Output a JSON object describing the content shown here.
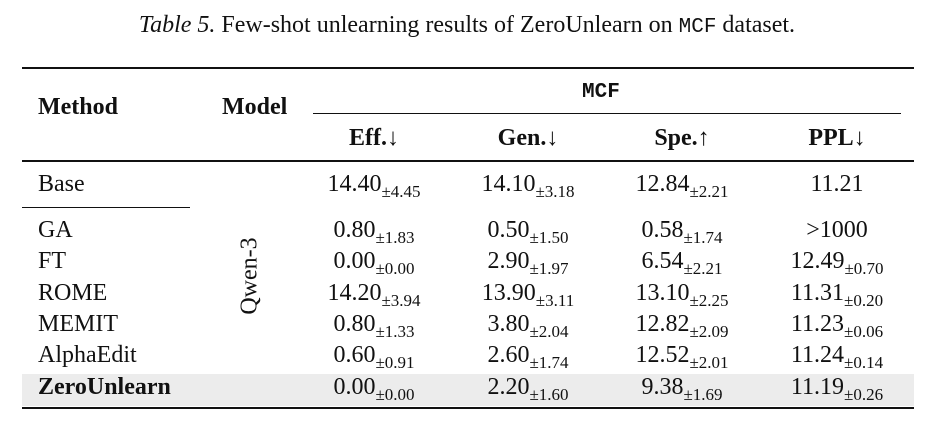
{
  "caption": {
    "label": "Table 5.",
    "text_before": "Few-shot unlearning results of ZeroUnlearn on",
    "dataset": "MCF",
    "text_after": "dataset."
  },
  "headers": {
    "method": "Method",
    "model": "Model",
    "group": "MCF",
    "eff": "Eff.↓",
    "gen": "Gen.↓",
    "spe": "Spe.↑",
    "ppl": "PPL↓"
  },
  "model_name": "Qwen-3",
  "rows": [
    {
      "method": "Base",
      "eff": "14.40",
      "eff_sd": "±4.45",
      "gen": "14.10",
      "gen_sd": "±3.18",
      "spe": "12.84",
      "spe_sd": "±2.21",
      "ppl": "11.21",
      "ppl_sd": ""
    },
    {
      "method": "GA",
      "eff": "0.80",
      "eff_sd": "±1.83",
      "gen": "0.50",
      "gen_sd": "±1.50",
      "spe": "0.58",
      "spe_sd": "±1.74",
      "ppl": ">1000",
      "ppl_sd": ""
    },
    {
      "method": "FT",
      "eff": "0.00",
      "eff_sd": "±0.00",
      "gen": "2.90",
      "gen_sd": "±1.97",
      "spe": "6.54",
      "spe_sd": "±2.21",
      "ppl": "12.49",
      "ppl_sd": "±0.70"
    },
    {
      "method": "ROME",
      "eff": "14.20",
      "eff_sd": "±3.94",
      "gen": "13.90",
      "gen_sd": "±3.11",
      "spe": "13.10",
      "spe_sd": "±2.25",
      "ppl": "11.31",
      "ppl_sd": "±0.20"
    },
    {
      "method": "MEMIT",
      "eff": "0.80",
      "eff_sd": "±1.33",
      "gen": "3.80",
      "gen_sd": "±2.04",
      "spe": "12.82",
      "spe_sd": "±2.09",
      "ppl": "11.23",
      "ppl_sd": "±0.06"
    },
    {
      "method": "AlphaEdit",
      "eff": "0.60",
      "eff_sd": "±0.91",
      "gen": "2.60",
      "gen_sd": "±1.74",
      "spe": "12.52",
      "spe_sd": "±2.01",
      "ppl": "11.24",
      "ppl_sd": "±0.14"
    },
    {
      "method": "ZeroUnlearn",
      "eff": "0.00",
      "eff_sd": "±0.00",
      "gen": "2.20",
      "gen_sd": "±1.60",
      "spe": "9.38",
      "spe_sd": "±1.69",
      "ppl": "11.19",
      "ppl_sd": "±0.26"
    }
  ]
}
